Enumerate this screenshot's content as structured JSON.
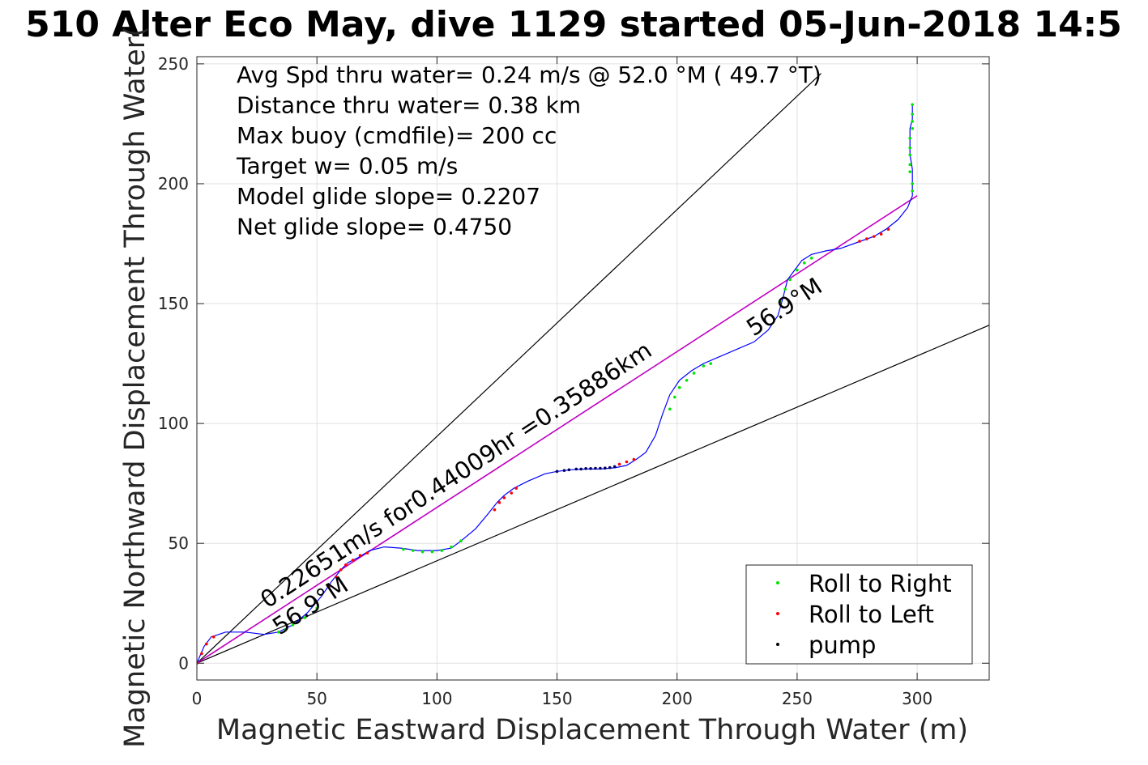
{
  "chart_data": {
    "type": "line",
    "title": "510 Alter Eco May, dive 1129 started 05-Jun-2018 14:5",
    "xlabel": "Magnetic Eastward Displacement Through Water (m)",
    "ylabel": "Magnetic Northward Displacement Through Water(",
    "xlim": [
      0,
      330
    ],
    "ylim": [
      -7,
      253
    ],
    "xticks": [
      "0",
      "50",
      "100",
      "150",
      "200",
      "250",
      "300"
    ],
    "yticks": [
      "0",
      "50",
      "100",
      "150",
      "200",
      "250"
    ],
    "grid": true,
    "legend": {
      "position": "bottom-right",
      "entries": [
        {
          "label": "Roll to Right",
          "color": "#00e600"
        },
        {
          "label": "Roll to Left",
          "color": "#ff0000"
        },
        {
          "label": "pump",
          "color": "#000000"
        }
      ]
    },
    "info_lines": [
      "Avg Spd thru water=  0.24 m/s @  52.0 °M ( 49.7 °T)",
      "Distance thru water=  0.38 km",
      "Max buoy (cmdfile)= 200 cc",
      "Target w= 0.05 m/s",
      "Model glide slope= 0.2207",
      "Net glide slope= 0.4750"
    ],
    "annotations": {
      "net_track": "0.22651m/s for0.44009hr =0.35886km",
      "heading_start": "56.9°M",
      "heading_end": "56.9°M"
    },
    "bounding_lines": [
      {
        "x": [
          0,
          260
        ],
        "y": [
          0,
          246
        ]
      },
      {
        "x": [
          0,
          330
        ],
        "y": [
          0,
          141
        ]
      }
    ],
    "net_line": {
      "x": [
        0,
        300
      ],
      "y": [
        0,
        195
      ],
      "color": "#c000c0"
    },
    "track_color": "#0000ff",
    "track": {
      "x": [
        0,
        3,
        6,
        12,
        20,
        28,
        34,
        40,
        46,
        52,
        56,
        60,
        63,
        67,
        72,
        78,
        85,
        92,
        100,
        106,
        110,
        116,
        121,
        125,
        128,
        132,
        138,
        145,
        150,
        156,
        162,
        168,
        174,
        179,
        183,
        187,
        191,
        194,
        197,
        201,
        206,
        211,
        218,
        225,
        232,
        238,
        242,
        244,
        246,
        249,
        252,
        256,
        262,
        268,
        275,
        282,
        287,
        292,
        296,
        298,
        298,
        298,
        297,
        297,
        297,
        298,
        298,
        298
      ],
      "y": [
        0,
        7,
        11,
        13,
        13,
        12,
        13,
        16,
        21,
        28,
        34,
        39,
        42,
        44,
        47,
        48.5,
        48,
        47,
        47,
        48,
        51,
        56,
        62,
        67,
        70,
        73,
        76,
        79,
        80,
        80.7,
        81,
        81,
        81.5,
        82.5,
        85,
        88,
        95,
        104,
        112,
        118,
        122,
        125,
        128,
        131,
        134,
        139,
        145,
        152,
        160,
        164,
        168,
        170.5,
        172,
        173,
        175.5,
        178,
        181,
        185,
        190,
        195,
        200,
        206,
        212,
        218,
        223,
        227,
        231,
        233
      ]
    },
    "roll_right_points": {
      "x": [
        34,
        37,
        40,
        45,
        50,
        86,
        90,
        94,
        98,
        102,
        106,
        110,
        197,
        199,
        201,
        204,
        207,
        211,
        214,
        243,
        245,
        247,
        250,
        253,
        256,
        298,
        298,
        297,
        297,
        297,
        297,
        297,
        298,
        298,
        298,
        298
      ],
      "y": [
        13,
        14,
        16,
        19,
        23,
        47.5,
        47,
        46.5,
        46.5,
        47,
        48.5,
        51,
        106,
        111,
        115,
        118,
        121,
        124,
        125,
        151,
        156,
        160,
        164,
        167,
        169,
        197,
        200,
        205,
        208,
        212,
        215,
        219,
        223,
        226,
        229,
        233
      ]
    },
    "roll_left_points": {
      "x": [
        0,
        2,
        4,
        7,
        55,
        58,
        60,
        62,
        65,
        68,
        71,
        124,
        126,
        128,
        131,
        133,
        176,
        179,
        182,
        276,
        279,
        282,
        285,
        288
      ],
      "y": [
        0,
        4,
        8,
        11,
        32,
        36,
        39,
        41,
        43,
        45,
        46,
        64,
        67,
        69,
        71,
        73,
        83,
        84,
        85,
        176,
        177,
        178,
        179,
        181
      ]
    },
    "pump_points": {
      "x": [
        150,
        153,
        155,
        158,
        160,
        162,
        164,
        166,
        168,
        170,
        172,
        174
      ],
      "y": [
        80,
        80.4,
        80.7,
        81,
        81,
        81.2,
        81.2,
        81.3,
        81.3,
        81.4,
        81.6,
        82
      ]
    }
  }
}
